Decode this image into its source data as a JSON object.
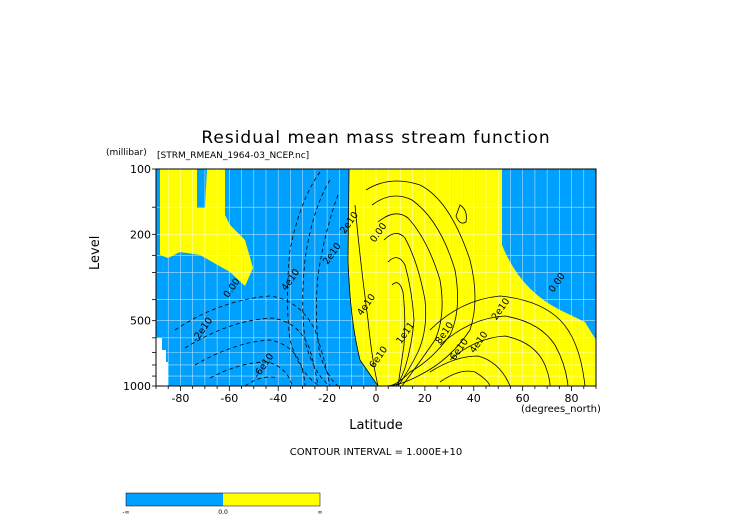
{
  "chart_data": {
    "type": "heatmap",
    "title": "Residual mean mass stream function",
    "source_label": "[STRM_RMEAN_1964-03_NCEP.nc]",
    "xlabel": "Latitude",
    "x_unit": "(degrees_north)",
    "ylabel": "Level",
    "y_unit": "(millibar)",
    "xlim": [
      -90,
      90
    ],
    "ylim": [
      1000,
      100
    ],
    "y_scale": "log",
    "x_ticks": [
      -80,
      -60,
      -40,
      -20,
      0,
      20,
      40,
      60,
      80
    ],
    "y_ticks": [
      100,
      200,
      500,
      1000
    ],
    "grid": true,
    "contour_interval_text": "CONTOUR INTERVAL = 1.000E+10",
    "contour_interval": 10000000000,
    "contour_labels": [
      {
        "text": "0.00",
        "lat": -58,
        "lev": 360
      },
      {
        "text": "-2e10",
        "lat": -70,
        "lev": 560
      },
      {
        "text": "-6e10",
        "lat": -45,
        "lev": 820
      },
      {
        "text": "4e10",
        "lat": -34,
        "lev": 330
      },
      {
        "text": "2e10",
        "lat": -17,
        "lev": 250
      },
      {
        "text": "2e10",
        "lat": -10,
        "lev": 180
      },
      {
        "text": "0.00",
        "lat": 2,
        "lev": 200
      },
      {
        "text": "4e10",
        "lat": -3,
        "lev": 430
      },
      {
        "text": "6e10",
        "lat": 2,
        "lev": 750
      },
      {
        "text": "1e11",
        "lat": 13,
        "lev": 580
      },
      {
        "text": "8e10",
        "lat": 29,
        "lev": 580
      },
      {
        "text": "6e10",
        "lat": 35,
        "lev": 690
      },
      {
        "text": "4e10",
        "lat": 43,
        "lev": 640
      },
      {
        "text": "2e10",
        "lat": 52,
        "lev": 450
      },
      {
        "text": "0.00",
        "lat": 75,
        "lev": 340
      }
    ],
    "colorbar": {
      "colors": [
        "#00a0ff",
        "#ffff00"
      ],
      "labels": [
        "-∞",
        "0.0",
        "∞"
      ]
    }
  }
}
